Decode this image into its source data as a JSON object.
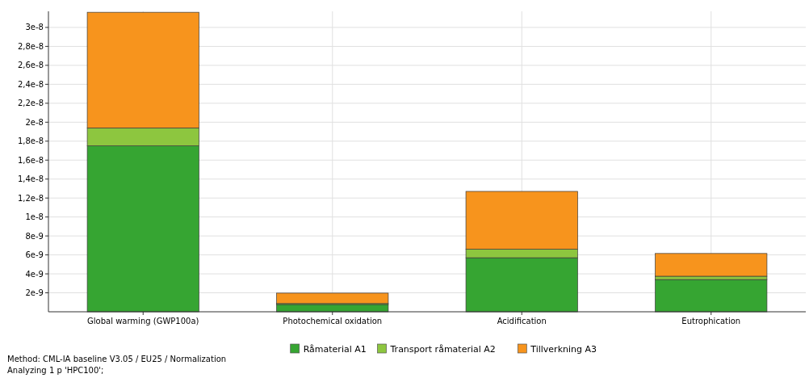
{
  "chart_data": {
    "type": "bar",
    "stacked": true,
    "categories": [
      "Global warming (GWP100a)",
      "Photochemical oxidation",
      "Acidification",
      "Eutrophication"
    ],
    "series": [
      {
        "name": "Råmaterial A1",
        "color": "#36a532",
        "values": [
          1.75e-08,
          7.7e-10,
          5.7e-09,
          3.4e-09
        ]
      },
      {
        "name": "Transport råmaterial A2",
        "color": "#8dc63f",
        "values": [
          1.9e-09,
          1e-10,
          9e-10,
          3.5e-10
        ]
      },
      {
        "name": "Tillverkning A3",
        "color": "#f7941d",
        "values": [
          1.22e-08,
          1.1e-09,
          6.1e-09,
          2.4e-09
        ]
      }
    ],
    "ylim": [
      0,
      3.17e-08
    ],
    "yticks": [
      {
        "value": 2e-09,
        "label": "2e-9"
      },
      {
        "value": 4e-09,
        "label": "4e-9"
      },
      {
        "value": 6e-09,
        "label": "6e-9"
      },
      {
        "value": 8e-09,
        "label": "8e-9"
      },
      {
        "value": 1e-08,
        "label": "1e-8"
      },
      {
        "value": 1.2e-08,
        "label": "1,2e-8"
      },
      {
        "value": 1.4e-08,
        "label": "1,4e-8"
      },
      {
        "value": 1.6e-08,
        "label": "1,6e-8"
      },
      {
        "value": 1.8e-08,
        "label": "1,8e-8"
      },
      {
        "value": 2e-08,
        "label": "2e-8"
      },
      {
        "value": 2.2e-08,
        "label": "2,2e-8"
      },
      {
        "value": 2.4e-08,
        "label": "2,4e-8"
      },
      {
        "value": 2.6e-08,
        "label": "2,6e-8"
      },
      {
        "value": 2.8e-08,
        "label": "2,8e-8"
      },
      {
        "value": 3e-08,
        "label": "3e-8"
      }
    ],
    "grid": true,
    "legend": "bottom",
    "annotations": [
      "Method: CML-IA baseline V3.05 / EU25 / Normalization",
      "Analyzing 1 p 'HPC100';"
    ]
  }
}
